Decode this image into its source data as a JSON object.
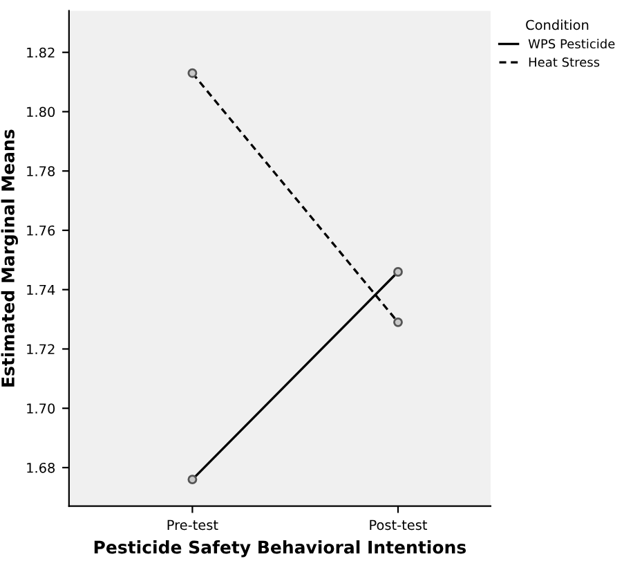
{
  "chart_data": {
    "type": "line",
    "xlabel": "Pesticide Safety Behavioral Intentions",
    "ylabel": "Estimated Marginal Means",
    "categories": [
      "Pre-test",
      "Post-test"
    ],
    "series": [
      {
        "name": "WPS Pesticide",
        "color": "#000000",
        "values": [
          1.676,
          1.746
        ],
        "line_style": "solid"
      },
      {
        "name": "Heat Stress",
        "color": "#000000",
        "values": [
          1.813,
          1.729
        ],
        "line_style": "dashed"
      }
    ],
    "ylim": [
      1.667,
      1.834
    ],
    "yticks": [
      {
        "value": 1.68,
        "label": "1.68"
      },
      {
        "value": 1.7,
        "label": "1.70"
      },
      {
        "value": 1.72,
        "label": "1.72"
      },
      {
        "value": 1.74,
        "label": "1.74"
      },
      {
        "value": 1.76,
        "label": "1.76"
      },
      {
        "value": 1.78,
        "label": "1.78"
      },
      {
        "value": 1.8,
        "label": "1.80"
      },
      {
        "value": 1.82,
        "label": "1.82"
      }
    ],
    "legend_title": "Condition",
    "legend": "top right",
    "marker": "circle",
    "grid": false
  }
}
